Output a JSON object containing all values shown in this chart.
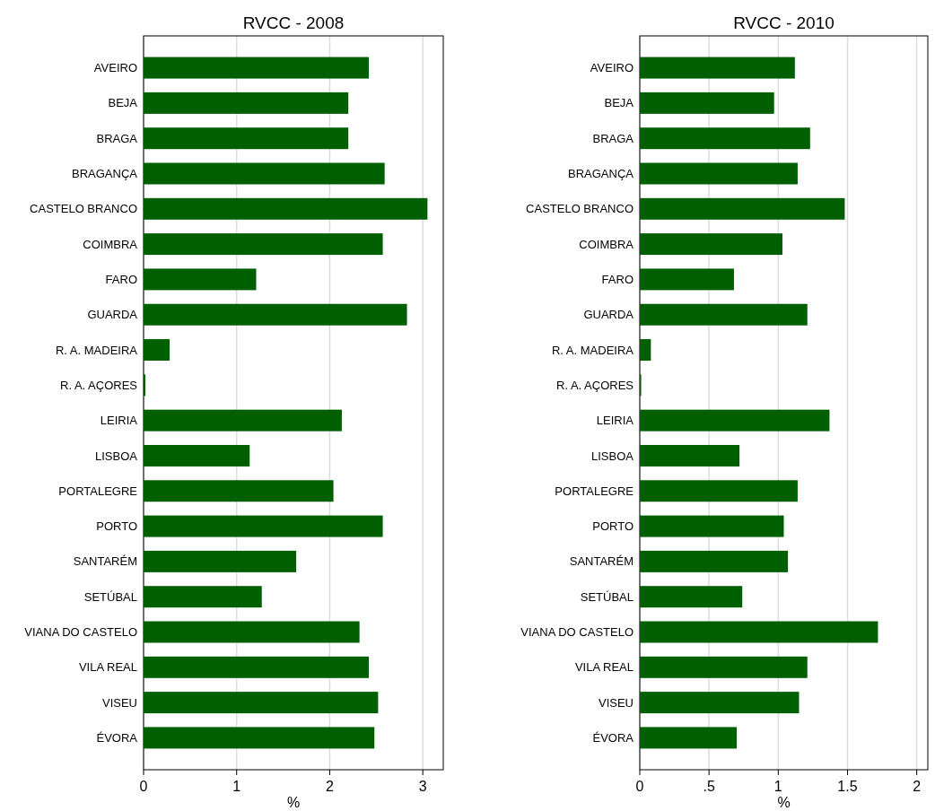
{
  "chart_data": [
    {
      "type": "bar",
      "orientation": "horizontal",
      "title": "RVCC - 2008",
      "xlabel": "%",
      "categories": [
        "AVEIRO",
        "BEJA",
        "BRAGA",
        "BRAGANÇA",
        "CASTELO BRANCO",
        "COIMBRA",
        "FARO",
        "GUARDA",
        "R. A. MADEIRA",
        "R. A. AÇORES",
        "LEIRIA",
        "LISBOA",
        "PORTALEGRE",
        "PORTO",
        "SANTARÉM",
        "SETÚBAL",
        "VIANA DO CASTELO",
        "VILA REAL",
        "VISEU",
        "ÉVORA"
      ],
      "values": [
        2.42,
        2.2,
        2.2,
        2.59,
        3.05,
        2.57,
        1.21,
        2.83,
        0.28,
        0.02,
        2.13,
        1.14,
        2.04,
        2.57,
        1.64,
        1.27,
        2.32,
        2.42,
        2.52,
        2.48
      ],
      "color": "#005f00",
      "xlim": [
        0,
        3.22
      ],
      "xticks": [
        0,
        1,
        2,
        3
      ],
      "grid": "x"
    },
    {
      "type": "bar",
      "orientation": "horizontal",
      "title": "RVCC - 2010",
      "xlabel": "%",
      "categories": [
        "AVEIRO",
        "BEJA",
        "BRAGA",
        "BRAGANÇA",
        "CASTELO BRANCO",
        "COIMBRA",
        "FARO",
        "GUARDA",
        "R. A. MADEIRA",
        "R. A. AÇORES",
        "LEIRIA",
        "LISBOA",
        "PORTALEGRE",
        "PORTO",
        "SANTARÉM",
        "SETÚBAL",
        "VIANA DO CASTELO",
        "VILA REAL",
        "VISEU",
        "ÉVORA"
      ],
      "values": [
        1.12,
        0.97,
        1.23,
        1.14,
        1.48,
        1.03,
        0.68,
        1.21,
        0.08,
        0.01,
        1.37,
        0.72,
        1.14,
        1.04,
        1.07,
        0.74,
        1.72,
        1.21,
        1.15,
        0.7
      ],
      "color": "#005f00",
      "xlim": [
        0,
        2.08
      ],
      "xticks": [
        0,
        {
          "value": 0.5,
          "label": ".5"
        },
        1,
        1.5,
        2
      ],
      "grid": "x"
    }
  ]
}
